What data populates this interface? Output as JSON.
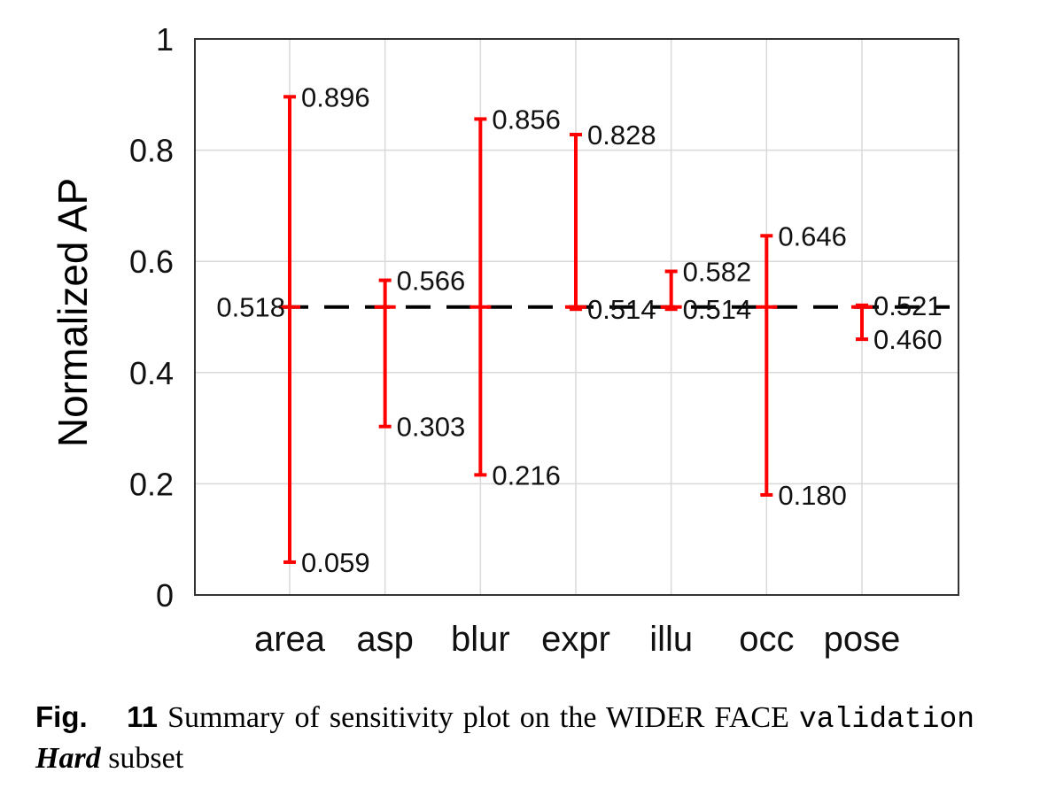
{
  "chart_data": {
    "type": "errorbar",
    "ylabel": "Normalized AP",
    "xlabel": "",
    "ylim": [
      0,
      1
    ],
    "y_ticks": [
      "0",
      "0.2",
      "0.4",
      "0.6",
      "0.8",
      "1"
    ],
    "y_tick_values": [
      0,
      0.2,
      0.4,
      0.6,
      0.8,
      1
    ],
    "grid": true,
    "baseline": {
      "value": 0.518,
      "label": "0.518",
      "style": "dashed",
      "color": "#000000"
    },
    "categories": [
      "area",
      "asp",
      "blur",
      "expr",
      "illu",
      "occ",
      "pose"
    ],
    "ranges": [
      {
        "category": "area",
        "max": 0.896,
        "min": 0.059,
        "max_label": "0.896",
        "min_label": "0.059"
      },
      {
        "category": "asp",
        "max": 0.566,
        "min": 0.303,
        "max_label": "0.566",
        "min_label": "0.303"
      },
      {
        "category": "blur",
        "max": 0.856,
        "min": 0.216,
        "max_label": "0.856",
        "min_label": "0.216"
      },
      {
        "category": "expr",
        "max": 0.828,
        "min": 0.514,
        "max_label": "0.828",
        "min_label": "0.514"
      },
      {
        "category": "illu",
        "max": 0.582,
        "min": 0.514,
        "max_label": "0.582",
        "min_label": "0.514"
      },
      {
        "category": "occ",
        "max": 0.646,
        "min": 0.18,
        "max_label": "0.646",
        "min_label": "0.180"
      },
      {
        "category": "pose",
        "max": 0.521,
        "min": 0.46,
        "max_label": "0.521",
        "min_label": "0.460"
      }
    ],
    "colors": {
      "range": "#ff0000",
      "baseline": "#000000",
      "grid": "#d9d9d9",
      "axis": "#333333"
    }
  },
  "caption": {
    "fig_label": "Fig.",
    "fig_number": "11",
    "text_main": "Summary of sensitivity plot on the WIDER FACE",
    "text_mono": "validation",
    "text_italic": "Hard",
    "text_end": "subset"
  }
}
